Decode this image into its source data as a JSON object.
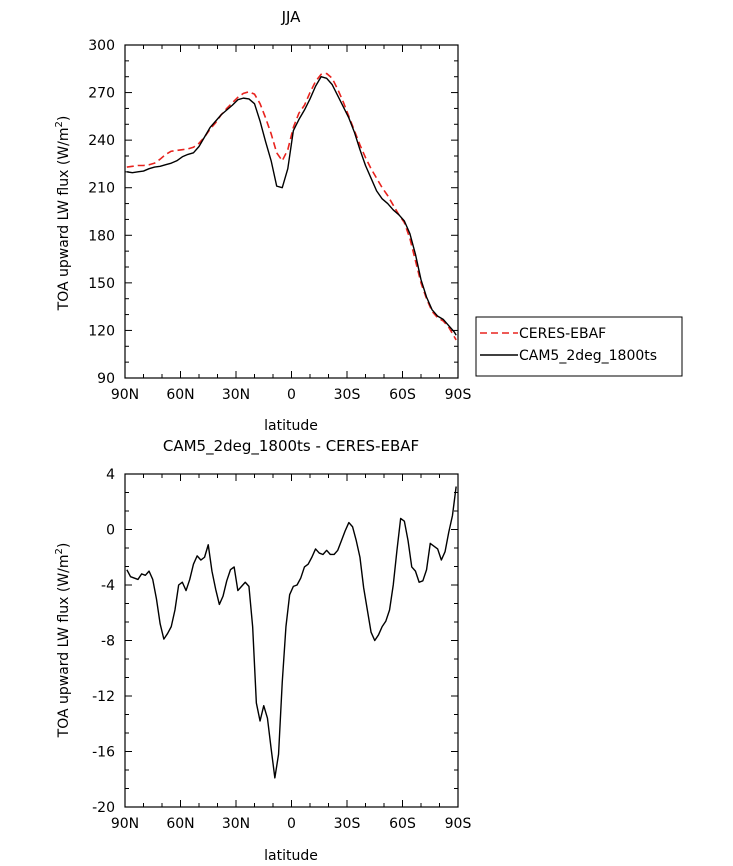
{
  "chart_data": [
    {
      "type": "line",
      "title": "JJA",
      "xlabel": "latitude",
      "ylabel": "TOA upward LW flux (W/m",
      "ylabel_sup": "2",
      "ylabel_close": ")",
      "xlim": [
        -90,
        90
      ],
      "ylim": [
        90,
        300
      ],
      "xticks": [
        -90,
        -60,
        -30,
        0,
        30,
        60,
        90
      ],
      "xtick_labels": [
        "90N",
        "60N",
        "30N",
        "0",
        "30S",
        "60S",
        "90S"
      ],
      "yticks": [
        90,
        120,
        150,
        180,
        210,
        240,
        270,
        300
      ],
      "ytick_labels": [
        "90",
        "120",
        "150",
        "180",
        "210",
        "240",
        "270",
        "300"
      ],
      "grid": false,
      "legend_position": "right",
      "series": [
        {
          "name": "CERES-EBAF",
          "color": "#e8231e",
          "dash": "dashed",
          "x": [
            -89,
            -86,
            -83,
            -80,
            -77,
            -74,
            -71,
            -68,
            -65,
            -62,
            -59,
            -56,
            -53,
            -50,
            -47,
            -44,
            -41,
            -38,
            -35,
            -32,
            -29,
            -26,
            -23,
            -20,
            -17,
            -14,
            -11,
            -8,
            -5,
            -2,
            1,
            4,
            7,
            10,
            13,
            16,
            19,
            22,
            25,
            28,
            31,
            34,
            37,
            40,
            43,
            46,
            49,
            52,
            55,
            58,
            61,
            64,
            67,
            70,
            73,
            76,
            79,
            82,
            85,
            88,
            89
          ],
          "y": [
            223,
            223.5,
            224,
            224,
            224.5,
            225.5,
            228,
            231,
            233,
            233.5,
            234,
            234.5,
            235.5,
            238,
            242,
            247,
            251,
            256,
            260,
            263.5,
            267,
            269.5,
            270.5,
            269,
            263,
            254,
            244,
            232,
            227,
            234,
            248,
            257,
            262,
            270,
            277,
            281.5,
            282,
            279,
            272,
            264,
            255,
            246,
            237,
            229,
            222,
            216,
            210,
            205,
            199,
            193,
            188,
            178,
            164,
            150,
            140,
            132,
            128,
            126,
            122,
            116,
            114
          ]
        },
        {
          "name": "CAM5_2deg_1800ts",
          "color": "#000000",
          "dash": "solid",
          "x": [
            -89,
            -86,
            -83,
            -80,
            -77,
            -74,
            -71,
            -68,
            -65,
            -62,
            -59,
            -56,
            -53,
            -50,
            -47,
            -44,
            -41,
            -38,
            -35,
            -32,
            -29,
            -26,
            -23,
            -20,
            -17,
            -14,
            -11,
            -8,
            -5,
            -2,
            1,
            4,
            7,
            10,
            13,
            16,
            19,
            22,
            25,
            28,
            31,
            34,
            37,
            40,
            43,
            46,
            49,
            52,
            55,
            58,
            61,
            64,
            67,
            70,
            73,
            76,
            79,
            82,
            85,
            88,
            89
          ],
          "y": [
            220,
            219.5,
            220,
            220.5,
            222,
            223,
            223.5,
            224.5,
            225.5,
            227,
            229.5,
            231,
            232,
            236,
            242,
            248,
            252,
            256,
            259,
            262,
            265.5,
            266.5,
            266,
            263,
            252,
            239,
            227,
            211,
            210,
            222,
            246,
            253,
            259,
            266,
            274,
            280,
            279,
            275,
            268,
            261,
            254,
            245,
            234,
            224,
            216,
            208,
            203,
            200,
            196,
            193,
            189,
            181,
            168,
            152,
            141,
            133,
            129,
            127,
            123,
            119,
            117
          ]
        }
      ]
    },
    {
      "type": "line",
      "title": "CAM5_2deg_1800ts - CERES-EBAF",
      "xlabel": "latitude",
      "ylabel": "TOA upward LW flux (W/m",
      "ylabel_sup": "2",
      "ylabel_close": ")",
      "xlim": [
        -90,
        90
      ],
      "ylim": [
        -20,
        4
      ],
      "xticks": [
        -90,
        -60,
        -30,
        0,
        30,
        60,
        90
      ],
      "xtick_labels": [
        "90N",
        "60N",
        "30N",
        "0",
        "30S",
        "60S",
        "90S"
      ],
      "yticks": [
        -20,
        -16,
        -12,
        -8,
        -4,
        0,
        4
      ],
      "ytick_labels": [
        "-20",
        "-16",
        "-12",
        "-8",
        "-4",
        "0",
        "4"
      ],
      "grid": false,
      "series": [
        {
          "color": "#000000",
          "dash": "solid",
          "x": [
            -89,
            -87,
            -85,
            -83,
            -81,
            -79,
            -77,
            -75,
            -73,
            -71,
            -69,
            -67,
            -65,
            -63,
            -61,
            -59,
            -57,
            -55,
            -53,
            -51,
            -49,
            -47,
            -45,
            -43,
            -41,
            -39,
            -37,
            -35,
            -33,
            -31,
            -29,
            -27,
            -25,
            -23,
            -21,
            -19,
            -17,
            -15,
            -13,
            -11,
            -9,
            -7,
            -5,
            -3,
            -1,
            1,
            3,
            5,
            7,
            9,
            11,
            13,
            15,
            17,
            19,
            21,
            23,
            25,
            27,
            29,
            31,
            33,
            35,
            37,
            39,
            41,
            43,
            45,
            47,
            49,
            51,
            53,
            55,
            57,
            59,
            61,
            63,
            65,
            67,
            69,
            71,
            73,
            75,
            77,
            79,
            81,
            83,
            85,
            87,
            89
          ],
          "y": [
            -2.9,
            -3.4,
            -3.5,
            -3.6,
            -3.2,
            -3.3,
            -3.0,
            -3.6,
            -5.0,
            -6.8,
            -7.9,
            -7.5,
            -7.0,
            -5.8,
            -4.0,
            -3.8,
            -4.4,
            -3.6,
            -2.5,
            -1.9,
            -2.2,
            -2.0,
            -1.1,
            -3.0,
            -4.3,
            -5.4,
            -4.8,
            -3.7,
            -2.9,
            -2.7,
            -4.4,
            -4.1,
            -3.8,
            -4.1,
            -7.0,
            -12.5,
            -13.8,
            -12.7,
            -13.6,
            -15.8,
            -17.9,
            -16.2,
            -11.0,
            -7.0,
            -4.7,
            -4.1,
            -4.0,
            -3.5,
            -2.7,
            -2.5,
            -2.0,
            -1.4,
            -1.7,
            -1.8,
            -1.5,
            -1.8,
            -1.8,
            -1.5,
            -0.8,
            -0.1,
            0.5,
            0.2,
            -0.8,
            -2.0,
            -4.2,
            -5.8,
            -7.4,
            -8.0,
            -7.6,
            -7.0,
            -6.6,
            -5.8,
            -4.0,
            -1.5,
            0.8,
            0.6,
            -0.8,
            -2.7,
            -3.0,
            -3.8,
            -3.7,
            -2.9,
            -1.0,
            -1.2,
            -1.4,
            -2.2,
            -1.6,
            -0.2,
            1.0,
            3.1
          ]
        }
      ]
    }
  ]
}
